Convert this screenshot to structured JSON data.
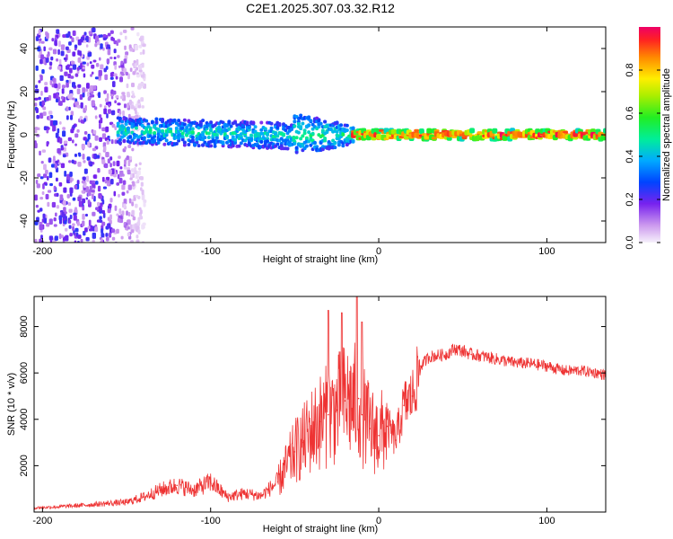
{
  "title": "C2E1.2025.307.03.32.R12",
  "colorbar": {
    "label": "Normalized spectral amplitude",
    "ticks": [
      "0.0",
      "0.2",
      "0.4",
      "0.6",
      "0.8"
    ],
    "tick_values": [
      0.0,
      0.2,
      0.4,
      0.6,
      0.8
    ],
    "range": [
      0,
      1
    ]
  },
  "chart_data": [
    {
      "type": "heatmap",
      "title": "C2E1.2025.307.03.32.R12",
      "xlabel": "Height of straight line (km)",
      "ylabel": "Frequency (Hz)",
      "xlim": [
        -205,
        135
      ],
      "ylim": [
        -50,
        50
      ],
      "xticks": [
        -200,
        -100,
        0,
        100
      ],
      "xtick_labels": [
        "-200",
        "-100",
        "0",
        "100"
      ],
      "yticks": [
        -40,
        -20,
        0,
        20,
        40
      ],
      "ytick_labels": [
        "-40",
        "-20",
        "0",
        "20",
        "40"
      ],
      "description_of_signal": [
        {
          "x_range": [
            -205,
            -140
          ],
          "freq_range": [
            -50,
            50
          ],
          "amplitude": 0.2
        },
        {
          "x_range": [
            -155,
            -50
          ],
          "freq_center": 2,
          "freq_halfwidth": 6,
          "amplitude": 0.45
        },
        {
          "x_range": [
            -50,
            -15
          ],
          "freq_center": 0,
          "freq_halfwidth": 10,
          "amplitude": 0.5
        },
        {
          "x_range": [
            -15,
            135
          ],
          "freq_center": 0,
          "freq_halfwidth": 2,
          "amplitude": 0.95
        }
      ]
    },
    {
      "type": "line",
      "xlabel": "Height of straight line (km)",
      "ylabel": "SNR (10 * v/v)",
      "xlim": [
        -205,
        135
      ],
      "ylim": [
        0,
        9300
      ],
      "xticks": [
        -200,
        -100,
        0,
        100
      ],
      "xtick_labels": [
        "-200",
        "-100",
        "0",
        "100"
      ],
      "yticks": [
        2000,
        4000,
        6000,
        8000
      ],
      "ytick_labels": [
        "2000",
        "4000",
        "6000",
        "8000"
      ],
      "color": "#ee3333",
      "series": [
        {
          "name": "SNR",
          "x": [
            -205,
            -190,
            -175,
            -160,
            -150,
            -140,
            -130,
            -120,
            -110,
            -100,
            -90,
            -80,
            -70,
            -60,
            -50,
            -45,
            -40,
            -35,
            -30,
            -25,
            -20,
            -15,
            -12,
            -10,
            -5,
            0,
            5,
            10,
            15,
            20,
            25,
            30,
            35,
            40,
            45,
            50,
            55,
            60,
            70,
            80,
            90,
            100,
            110,
            120,
            130,
            135
          ],
          "values": [
            180,
            230,
            300,
            380,
            420,
            650,
            950,
            1150,
            950,
            1300,
            650,
            800,
            700,
            1300,
            2600,
            3000,
            3500,
            3900,
            4200,
            4400,
            4800,
            4700,
            4900,
            4200,
            3600,
            3300,
            3700,
            3100,
            4600,
            5000,
            6300,
            6700,
            6750,
            6800,
            7050,
            6950,
            6800,
            6750,
            6600,
            6450,
            6400,
            6300,
            6100,
            6100,
            6000,
            5900
          ],
          "peaks": [
            {
              "x": -30,
              "value": 8700
            },
            {
              "x": -22,
              "value": 8600
            },
            {
              "x": -13,
              "value": 9300
            },
            {
              "x": -10,
              "value": 8200
            }
          ]
        }
      ]
    }
  ]
}
